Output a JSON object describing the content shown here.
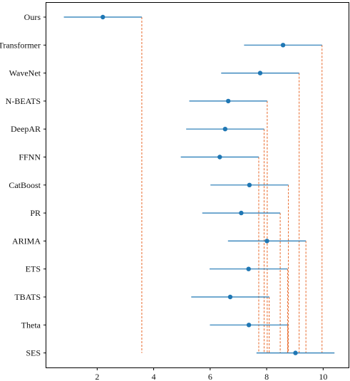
{
  "chart_data": {
    "type": "scatter",
    "title": "",
    "xlabel": "",
    "ylabel": "",
    "xlim": [
      0.2,
      10.9
    ],
    "x_ticks": [
      2,
      4,
      6,
      8,
      10
    ],
    "grid": false,
    "colors": {
      "marker": "#1f77b4",
      "interval": "#1f77b4",
      "reference": "#e8692a",
      "axis": "#000000"
    },
    "categories": [
      "Ours",
      "Transformer",
      "WaveNet",
      "N-BEATS",
      "DeepAR",
      "FFNN",
      "CatBoost",
      "PR",
      "ARIMA",
      "ETS",
      "TBATS",
      "Theta",
      "SES"
    ],
    "series": [
      {
        "values": [
          2.2,
          8.58,
          7.77,
          6.64,
          6.53,
          6.34,
          7.39,
          7.1,
          8.01,
          7.36,
          6.71,
          7.37,
          9.02
        ],
        "lower": [
          0.82,
          7.2,
          6.39,
          5.26,
          5.15,
          4.96,
          6.01,
          5.72,
          6.63,
          5.98,
          5.33,
          5.99,
          7.64
        ],
        "upper": [
          3.58,
          9.96,
          9.15,
          8.02,
          7.91,
          7.72,
          8.77,
          8.48,
          9.39,
          8.74,
          8.09,
          8.75,
          10.4
        ]
      }
    ]
  }
}
